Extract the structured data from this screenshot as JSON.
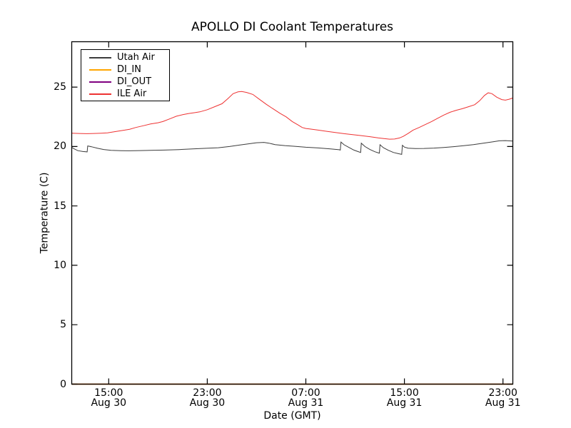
{
  "figure": {
    "title": "APOLLO DI Coolant Temperatures",
    "background": "#ffffff",
    "axis_color": "#000000"
  },
  "chart_data": {
    "type": "line",
    "title": "APOLLO DI Coolant Temperatures",
    "xlabel": "Date (GMT)",
    "ylabel": "Temperature (C)",
    "x_unit": "hours since Aug 30 12:00 GMT",
    "xlim": [
      0,
      35.8
    ],
    "ylim": [
      0,
      28.82
    ],
    "grid": false,
    "legend_position": "upper left",
    "tick_direction": "in",
    "yticks": [
      0,
      5,
      10,
      15,
      20,
      25
    ],
    "xticks": [
      {
        "h": 3,
        "time": "15:00",
        "date": "Aug 30"
      },
      {
        "h": 11,
        "time": "23:00",
        "date": "Aug 30"
      },
      {
        "h": 19,
        "time": "07:00",
        "date": "Aug 31"
      },
      {
        "h": 27,
        "time": "15:00",
        "date": "Aug 31"
      },
      {
        "h": 35,
        "time": "23:00",
        "date": "Aug 31"
      }
    ],
    "series": [
      {
        "name": "Utah Air",
        "color": "#3c3c3c",
        "points": [
          [
            0,
            19.92
          ],
          [
            0.2,
            19.8
          ],
          [
            0.5,
            19.65
          ],
          [
            0.9,
            19.58
          ],
          [
            1.25,
            19.55
          ],
          [
            1.3,
            20.05
          ],
          [
            1.6,
            19.98
          ],
          [
            2.1,
            19.85
          ],
          [
            2.6,
            19.75
          ],
          [
            3.2,
            19.68
          ],
          [
            4.0,
            19.65
          ],
          [
            4.6,
            19.64
          ],
          [
            5.5,
            19.66
          ],
          [
            6.4,
            19.68
          ],
          [
            7.5,
            19.7
          ],
          [
            8.7,
            19.74
          ],
          [
            9.8,
            19.8
          ],
          [
            10.9,
            19.85
          ],
          [
            11.9,
            19.9
          ],
          [
            12.8,
            20.0
          ],
          [
            13.6,
            20.12
          ],
          [
            14.3,
            20.22
          ],
          [
            15.0,
            20.32
          ],
          [
            15.6,
            20.35
          ],
          [
            16.0,
            20.28
          ],
          [
            16.5,
            20.16
          ],
          [
            17.3,
            20.08
          ],
          [
            18.1,
            20.02
          ],
          [
            19.0,
            19.94
          ],
          [
            20.0,
            19.88
          ],
          [
            21.0,
            19.8
          ],
          [
            21.7,
            19.73
          ],
          [
            21.8,
            19.7
          ],
          [
            21.85,
            20.38
          ],
          [
            22.1,
            20.15
          ],
          [
            22.5,
            19.92
          ],
          [
            22.9,
            19.7
          ],
          [
            23.3,
            19.55
          ],
          [
            23.45,
            19.5
          ],
          [
            23.5,
            20.28
          ],
          [
            23.8,
            20.0
          ],
          [
            24.2,
            19.75
          ],
          [
            24.6,
            19.56
          ],
          [
            24.9,
            19.46
          ],
          [
            24.97,
            19.44
          ],
          [
            25.02,
            20.15
          ],
          [
            25.3,
            19.9
          ],
          [
            25.7,
            19.68
          ],
          [
            26.1,
            19.5
          ],
          [
            26.5,
            19.4
          ],
          [
            26.78,
            19.34
          ],
          [
            26.84,
            20.1
          ],
          [
            27.0,
            19.95
          ],
          [
            27.3,
            19.86
          ],
          [
            27.9,
            19.83
          ],
          [
            28.6,
            19.84
          ],
          [
            29.4,
            19.87
          ],
          [
            30.2,
            19.92
          ],
          [
            31.0,
            19.99
          ],
          [
            31.8,
            20.07
          ],
          [
            32.6,
            20.16
          ],
          [
            33.4,
            20.28
          ],
          [
            34.2,
            20.4
          ],
          [
            34.7,
            20.48
          ],
          [
            35.2,
            20.5
          ],
          [
            35.8,
            20.46
          ]
        ]
      },
      {
        "name": "DI_IN",
        "color": "#ffa500",
        "points": [
          [
            0,
            0
          ],
          [
            35.8,
            0
          ]
        ]
      },
      {
        "name": "DI_OUT",
        "color": "#800080",
        "points": [
          [
            0,
            0
          ],
          [
            35.8,
            0
          ]
        ]
      },
      {
        "name": "ILE Air",
        "color": "#ee3333",
        "points": [
          [
            0,
            21.12
          ],
          [
            0.6,
            21.1
          ],
          [
            1.2,
            21.08
          ],
          [
            1.8,
            21.1
          ],
          [
            2.4,
            21.12
          ],
          [
            2.9,
            21.15
          ],
          [
            3.3,
            21.22
          ],
          [
            3.8,
            21.3
          ],
          [
            4.3,
            21.38
          ],
          [
            4.7,
            21.45
          ],
          [
            5.2,
            21.6
          ],
          [
            5.8,
            21.75
          ],
          [
            6.4,
            21.9
          ],
          [
            7.0,
            22.0
          ],
          [
            7.4,
            22.1
          ],
          [
            8.0,
            22.35
          ],
          [
            8.5,
            22.55
          ],
          [
            9.0,
            22.68
          ],
          [
            9.5,
            22.78
          ],
          [
            10.0,
            22.85
          ],
          [
            10.4,
            22.92
          ],
          [
            11.0,
            23.1
          ],
          [
            11.6,
            23.35
          ],
          [
            12.2,
            23.6
          ],
          [
            12.7,
            24.05
          ],
          [
            13.1,
            24.45
          ],
          [
            13.5,
            24.6
          ],
          [
            13.8,
            24.63
          ],
          [
            14.2,
            24.55
          ],
          [
            14.7,
            24.38
          ],
          [
            15.2,
            24.0
          ],
          [
            15.8,
            23.55
          ],
          [
            16.3,
            23.2
          ],
          [
            16.9,
            22.8
          ],
          [
            17.4,
            22.5
          ],
          [
            17.9,
            22.1
          ],
          [
            18.4,
            21.8
          ],
          [
            18.7,
            21.6
          ],
          [
            19.0,
            21.52
          ],
          [
            19.3,
            21.48
          ],
          [
            20.0,
            21.38
          ],
          [
            20.7,
            21.28
          ],
          [
            21.4,
            21.18
          ],
          [
            22.1,
            21.08
          ],
          [
            22.8,
            21.0
          ],
          [
            23.5,
            20.92
          ],
          [
            24.2,
            20.83
          ],
          [
            24.9,
            20.72
          ],
          [
            25.4,
            20.66
          ],
          [
            25.8,
            20.62
          ],
          [
            26.2,
            20.63
          ],
          [
            26.6,
            20.72
          ],
          [
            26.9,
            20.85
          ],
          [
            27.3,
            21.1
          ],
          [
            27.7,
            21.38
          ],
          [
            28.2,
            21.6
          ],
          [
            28.7,
            21.85
          ],
          [
            29.2,
            22.1
          ],
          [
            29.7,
            22.38
          ],
          [
            30.2,
            22.65
          ],
          [
            30.7,
            22.88
          ],
          [
            31.2,
            23.05
          ],
          [
            31.7,
            23.18
          ],
          [
            32.2,
            23.35
          ],
          [
            32.7,
            23.52
          ],
          [
            33.1,
            23.85
          ],
          [
            33.5,
            24.3
          ],
          [
            33.8,
            24.52
          ],
          [
            34.1,
            24.45
          ],
          [
            34.5,
            24.15
          ],
          [
            34.9,
            23.95
          ],
          [
            35.2,
            23.9
          ],
          [
            35.5,
            23.98
          ],
          [
            35.8,
            24.08
          ]
        ]
      }
    ]
  }
}
